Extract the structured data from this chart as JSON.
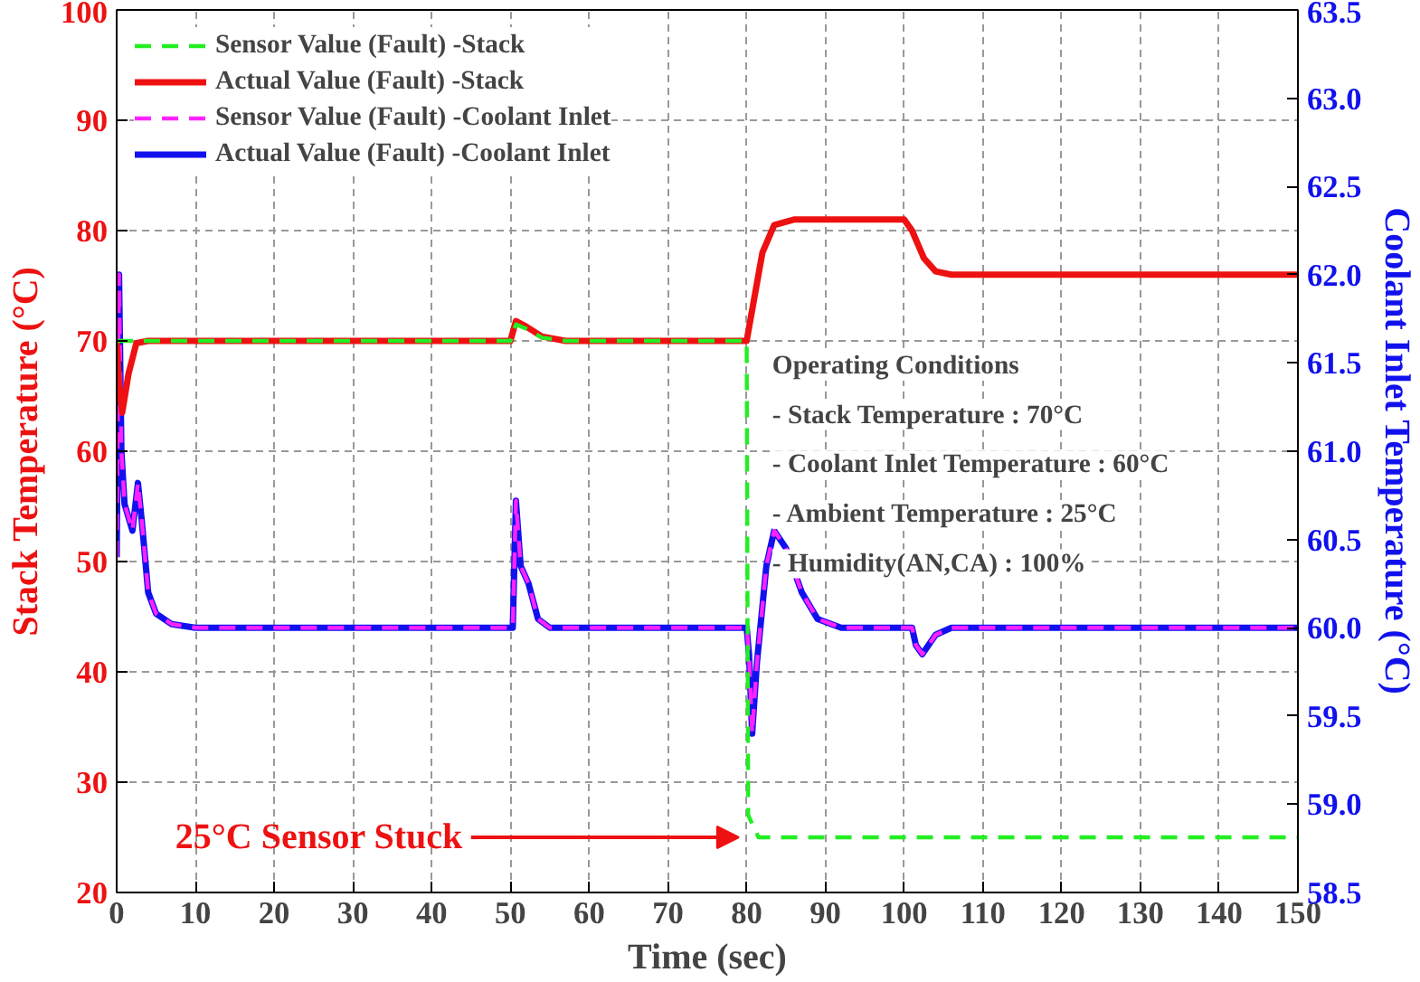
{
  "chart_data": {
    "type": "line",
    "xlabel": "Time (sec)",
    "ylabel": "Stack Temperature (°C)",
    "y2label": "Coolant Inlet Temperature (°C)",
    "xlim": [
      0,
      150
    ],
    "xticks": [
      0,
      10,
      20,
      30,
      40,
      50,
      60,
      70,
      80,
      90,
      100,
      110,
      120,
      130,
      140,
      150
    ],
    "ylim": [
      20,
      100
    ],
    "yticks": [
      20,
      30,
      40,
      50,
      60,
      70,
      80,
      90,
      100
    ],
    "y2lim": [
      58.5,
      63.5
    ],
    "y2ticks": [
      58.5,
      {
        "value": 59,
        "label": "59.0"
      },
      59.5,
      {
        "value": 60,
        "label": "60.0"
      },
      60.5,
      {
        "value": 61,
        "label": "61.0"
      },
      61.5,
      {
        "value": 62,
        "label": "62.0"
      },
      62.5,
      {
        "value": 63,
        "label": "63.0"
      },
      63.5
    ],
    "grid": true,
    "legend": "top left",
    "marker": "none",
    "series": [
      {
        "name": "Sensor Value (Fault) -Stack",
        "color": "#22ee22",
        "line_style": "dashed",
        "x": [
          0,
          50,
          50.7,
          52,
          54,
          57,
          80,
          80.2,
          81.5,
          150
        ],
        "values": [
          70,
          70,
          71.5,
          71.1,
          70.3,
          70,
          70,
          27,
          25,
          25
        ]
      },
      {
        "name": "Actual Value (Fault) -Stack",
        "color": "#ee1111",
        "line_style": "solid",
        "x": [
          0,
          0.3,
          0.7,
          1.5,
          2.5,
          4,
          50,
          50.7,
          52,
          54,
          57,
          80,
          81,
          82,
          83.5,
          86,
          100,
          101,
          102.5,
          104,
          106,
          150
        ],
        "values": [
          70,
          66,
          63.5,
          67,
          69.8,
          70,
          70,
          71.8,
          71.3,
          70.4,
          70,
          70,
          74,
          78,
          80.5,
          81,
          81,
          80,
          77.5,
          76.3,
          76,
          76
        ]
      },
      {
        "name": "Sensor Value (Fault) -Coolant Inlet",
        "color": "#ff22ff",
        "line_style": "dashed",
        "axis": "y2",
        "x": [
          0,
          0.3,
          0.6,
          1,
          2,
          2.7,
          3.2,
          4,
          5,
          7,
          10,
          50.3,
          50.7,
          51.3,
          52.3,
          53.5,
          55,
          80,
          80.3,
          80.7,
          81.3,
          82.5,
          83.5,
          85,
          87,
          89,
          92,
          101,
          101.5,
          102.3,
          104,
          106,
          150
        ],
        "values": [
          60.4,
          62.0,
          61.0,
          60.7,
          60.55,
          60.82,
          60.6,
          60.2,
          60.08,
          60.02,
          60.0,
          60.0,
          60.72,
          60.35,
          60.25,
          60.05,
          60.0,
          60.0,
          59.85,
          59.4,
          59.8,
          60.35,
          60.55,
          60.45,
          60.2,
          60.05,
          60.0,
          60.0,
          59.9,
          59.85,
          59.96,
          60.0,
          60.0
        ]
      },
      {
        "name": "Actual Value (Fault) -Coolant Inlet",
        "color": "#1111ee",
        "line_style": "solid",
        "axis": "y2",
        "x": [
          0,
          0.3,
          0.6,
          1,
          2,
          2.7,
          3.2,
          4,
          5,
          7,
          10,
          50.3,
          50.7,
          51.3,
          52.3,
          53.5,
          55,
          80,
          80.3,
          80.7,
          81.3,
          82.5,
          83.5,
          85,
          87,
          89,
          92,
          101,
          101.5,
          102.3,
          104,
          106,
          150
        ],
        "values": [
          60.4,
          62.0,
          61.0,
          60.7,
          60.55,
          60.82,
          60.6,
          60.2,
          60.08,
          60.02,
          60.0,
          60.0,
          60.72,
          60.35,
          60.25,
          60.05,
          60.0,
          60.0,
          59.85,
          59.4,
          59.8,
          60.35,
          60.55,
          60.45,
          60.2,
          60.05,
          60.0,
          60.0,
          59.9,
          59.85,
          59.96,
          60.0,
          60.0
        ]
      }
    ],
    "annotations": [
      {
        "text": "25°C Sensor Stuck",
        "x": 80,
        "y": 25
      },
      "Operating Conditions",
      "- Stack Temperature : 70°C",
      "- Coolant Inlet Temperature : 60°C",
      "- Ambient Temperature : 25°C",
      "- Humidity(AN,CA) : 100%"
    ]
  }
}
